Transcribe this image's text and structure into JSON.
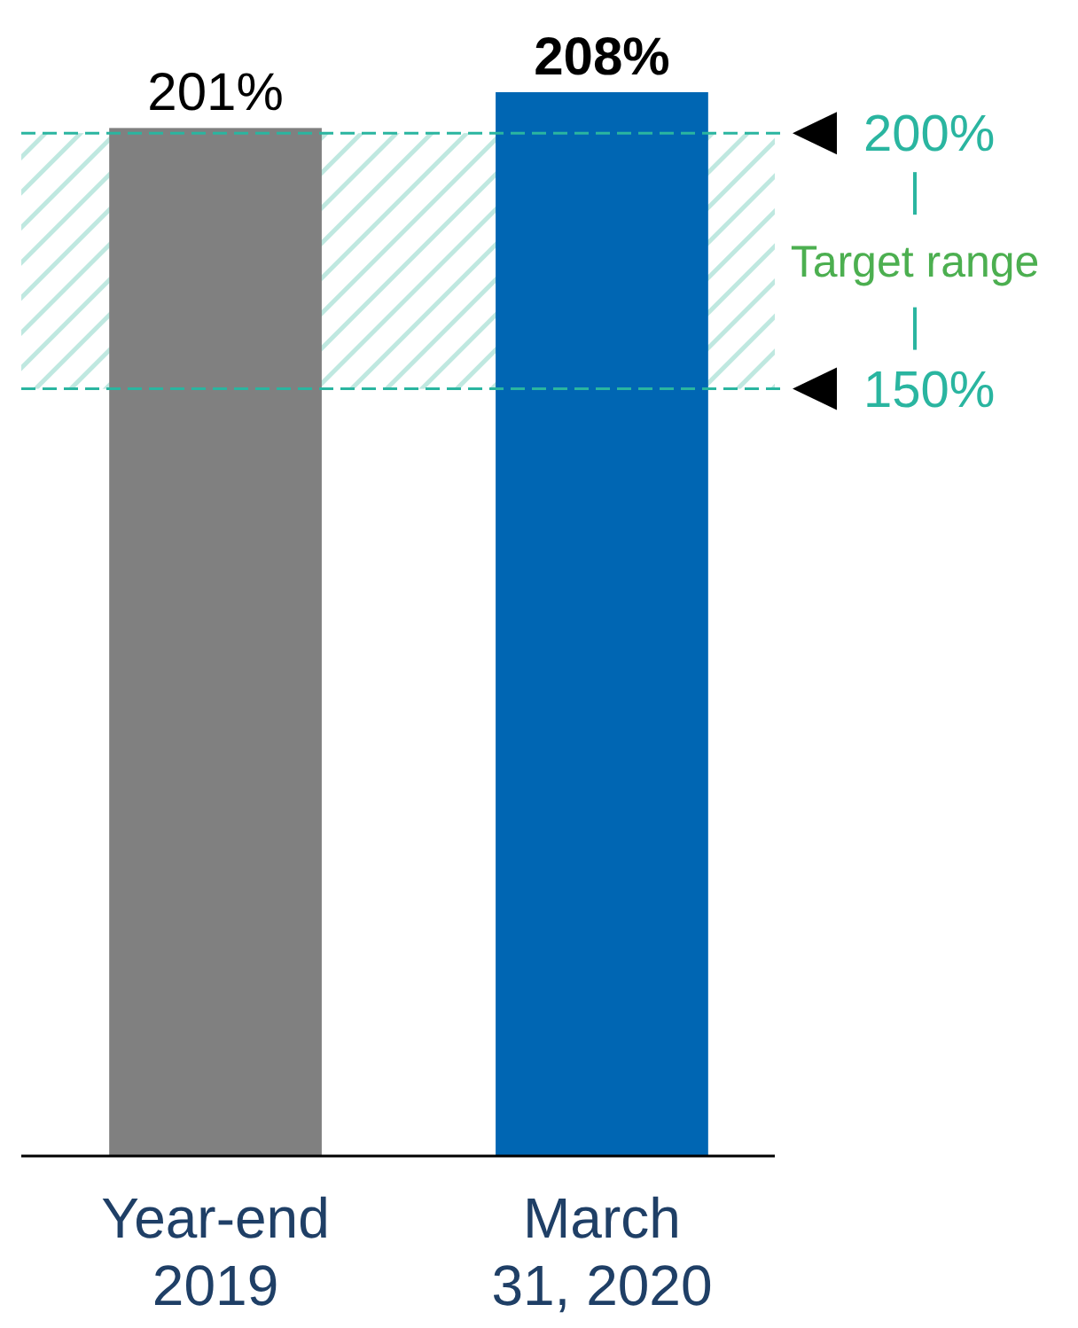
{
  "chart_data": {
    "type": "bar",
    "categories": [
      "Year-end 2019",
      "March 31, 2020"
    ],
    "values": [
      201,
      208
    ],
    "colors": [
      "#808080",
      "#0066b3"
    ],
    "value_labels": [
      "201%",
      "208%"
    ],
    "bands": [
      {
        "axis": "y",
        "from": 150,
        "to": 200,
        "label": "Target range",
        "color": "#4caf50"
      }
    ],
    "ref_lines": [
      {
        "axis": "y",
        "value": 200,
        "label": "200%",
        "color": "#2ab5a0",
        "line_style": "dashed"
      },
      {
        "axis": "y",
        "value": 150,
        "label": "150%",
        "color": "#2ab5a0",
        "line_style": "dashed"
      }
    ]
  }
}
